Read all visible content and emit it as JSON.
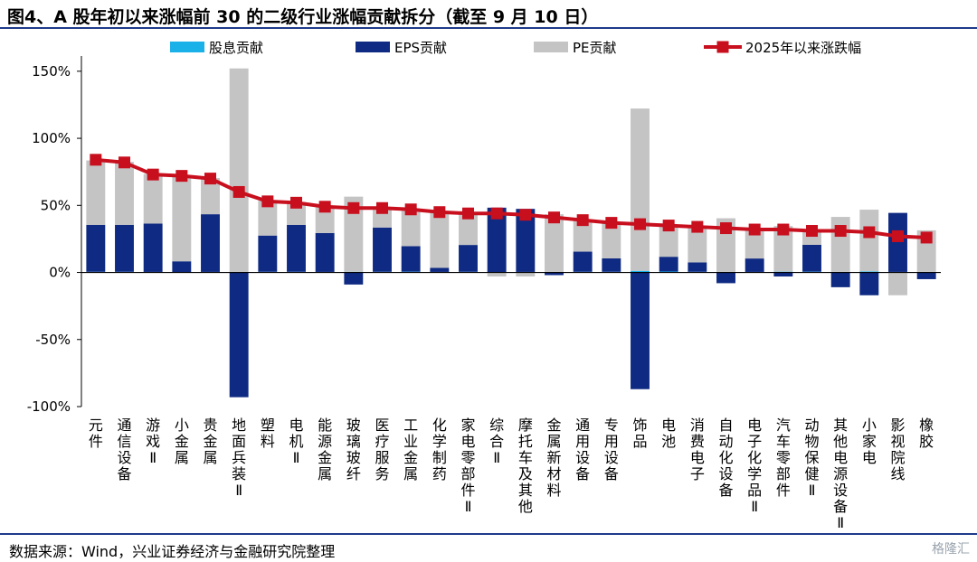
{
  "title": "图4、A 股年初以来涨幅前 30 的二级行业涨幅贡献拆分（截至 9 月 10 日）",
  "source": "数据来源：Wind，兴业证券经济与金融研究院整理",
  "watermark": "格隆汇",
  "colors": {
    "dividend": "#1ab0e8",
    "eps": "#0f2a82",
    "pe": "#c4c4c4",
    "line": "#c80f1e",
    "rule": "#1f3a8a"
  },
  "chart_data": {
    "type": "bar",
    "stacked": true,
    "title": "",
    "xlabel": "",
    "ylabel": "",
    "ylim": [
      -1.0,
      1.6
    ],
    "yticks": [
      "150%",
      "100%",
      "50%",
      "0%",
      "-50%",
      "-100%"
    ],
    "ytick_values": [
      1.5,
      1.0,
      0.5,
      0.0,
      -0.5,
      -1.0
    ],
    "grid": false,
    "legend_position": "top",
    "categories": [
      "元件",
      "通信设备",
      "游戏Ⅱ",
      "小金属",
      "贵金属",
      "地面兵装Ⅱ",
      "塑料",
      "电机Ⅱ",
      "能源金属",
      "玻璃玻纤",
      "医疗服务",
      "工业金属",
      "化学制药",
      "家电零部件Ⅱ",
      "综合Ⅱ",
      "摩托车及其他",
      "金属新材料",
      "通用设备",
      "专用设备",
      "饰品",
      "电池",
      "消费电子",
      "自动化设备",
      "电子化学品Ⅱ",
      "汽车零部件",
      "动物保健Ⅱ",
      "其他电源设备Ⅱ",
      "小家电",
      "影视院线",
      "橡胶"
    ],
    "series": [
      {
        "name": "股息贡献",
        "kind": "bar",
        "values": [
          0.005,
          0.005,
          0.004,
          0.003,
          0.004,
          0.001,
          0.005,
          0.005,
          0.004,
          0.005,
          0.005,
          0.006,
          0.004,
          0.005,
          0.003,
          0.004,
          0.004,
          0.005,
          0.005,
          0.012,
          0.007,
          0.005,
          0.004,
          0.004,
          0.006,
          0.006,
          0.004,
          0.008,
          0.004,
          0.004
        ]
      },
      {
        "name": "EPS贡献",
        "kind": "bar",
        "values": [
          0.35,
          0.35,
          0.36,
          0.08,
          0.43,
          -0.93,
          0.27,
          0.35,
          0.29,
          -0.09,
          0.33,
          0.19,
          0.03,
          0.2,
          0.48,
          0.47,
          -0.02,
          0.15,
          0.1,
          -0.87,
          0.11,
          0.07,
          -0.08,
          0.1,
          -0.03,
          0.2,
          -0.11,
          -0.17,
          0.44,
          -0.05
        ]
      },
      {
        "name": "PE贡献",
        "kind": "bar",
        "values": [
          0.48,
          0.47,
          0.37,
          0.63,
          0.27,
          1.52,
          0.26,
          0.17,
          0.2,
          0.56,
          0.15,
          0.27,
          0.42,
          0.24,
          -0.03,
          -0.03,
          0.43,
          0.24,
          0.27,
          1.21,
          0.24,
          0.27,
          0.4,
          0.22,
          0.34,
          0.11,
          0.41,
          0.46,
          -0.17,
          0.31
        ]
      },
      {
        "name": "2025年以来涨跌幅",
        "kind": "line",
        "values": [
          0.84,
          0.82,
          0.73,
          0.72,
          0.7,
          0.6,
          0.53,
          0.52,
          0.49,
          0.48,
          0.48,
          0.47,
          0.45,
          0.44,
          0.44,
          0.43,
          0.41,
          0.39,
          0.37,
          0.36,
          0.35,
          0.34,
          0.33,
          0.32,
          0.32,
          0.31,
          0.31,
          0.3,
          0.27,
          0.26
        ]
      }
    ]
  }
}
